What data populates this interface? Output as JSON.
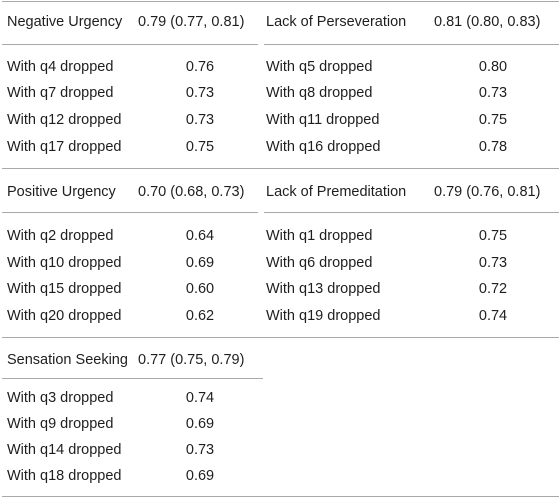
{
  "blocks": [
    {
      "left": {
        "header": "Negative Urgency",
        "alpha": "0.79 (0.77, 0.81)",
        "rows": [
          {
            "label": "With q4 dropped",
            "value": "0.76"
          },
          {
            "label": "With q7 dropped",
            "value": "0.73"
          },
          {
            "label": "With q12 dropped",
            "value": "0.73"
          },
          {
            "label": "With q17 dropped",
            "value": "0.75"
          }
        ]
      },
      "right": {
        "header": "Lack of Perseveration",
        "alpha": "0.81 (0.80, 0.83)",
        "rows": [
          {
            "label": "With q5 dropped",
            "value": "0.80"
          },
          {
            "label": "With q8 dropped",
            "value": "0.73"
          },
          {
            "label": "With q11 dropped",
            "value": "0.75"
          },
          {
            "label": "With q16 dropped",
            "value": "0.78"
          }
        ]
      }
    },
    {
      "left": {
        "header": "Positive Urgency",
        "alpha": "0.70 (0.68, 0.73)",
        "rows": [
          {
            "label": "With q2 dropped",
            "value": "0.64"
          },
          {
            "label": "With q10 dropped",
            "value": "0.69"
          },
          {
            "label": "With q15 dropped",
            "value": "0.60"
          },
          {
            "label": "With q20 dropped",
            "value": "0.62"
          }
        ]
      },
      "right": {
        "header": "Lack of Premeditation",
        "alpha": "0.79 (0.76, 0.81)",
        "rows": [
          {
            "label": "With q1 dropped",
            "value": "0.75"
          },
          {
            "label": "With q6 dropped",
            "value": "0.73"
          },
          {
            "label": "With q13 dropped",
            "value": "0.72"
          },
          {
            "label": "With q19 dropped",
            "value": "0.74"
          }
        ]
      }
    },
    {
      "left": {
        "header": "Sensation Seeking",
        "alpha": "0.77 (0.75, 0.79)",
        "rows": [
          {
            "label": "With q3 dropped",
            "value": "0.74"
          },
          {
            "label": "With q9 dropped",
            "value": "0.69"
          },
          {
            "label": "With q14 dropped",
            "value": "0.73"
          },
          {
            "label": "With q18 dropped",
            "value": "0.69"
          }
        ]
      }
    }
  ]
}
